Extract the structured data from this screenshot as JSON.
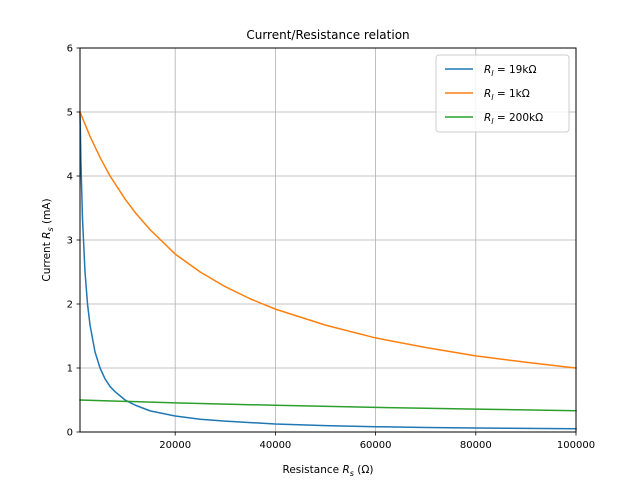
{
  "chart_data": {
    "type": "line",
    "title": "Current/Resistance relation",
    "xlabel": {
      "main": "Resistance ",
      "var": "R",
      "sub": "s",
      "unit": " (Ω)"
    },
    "ylabel": {
      "main": "Current ",
      "var": "R",
      "sub": "s",
      "unit": " (mA)"
    },
    "xlim": [
      1000,
      100000
    ],
    "ylim": [
      0,
      6
    ],
    "xticks": [
      20000,
      40000,
      60000,
      80000,
      100000
    ],
    "yticks": [
      0,
      1,
      2,
      3,
      4,
      5,
      6
    ],
    "grid": true,
    "legend_position": "top-right",
    "series": [
      {
        "name": "R_l = 19kΩ",
        "label": {
          "var": "R",
          "sub": "l",
          "rest": " = 19kΩ"
        },
        "color": "#1f77b4",
        "x": [
          1000,
          1200,
          1500,
          2000,
          2500,
          3000,
          4000,
          5000,
          6000,
          7000,
          8000,
          10000,
          12000,
          15000,
          20000,
          25000,
          30000,
          40000,
          50000,
          60000,
          70000,
          80000,
          90000,
          100000
        ],
        "y": [
          5.0,
          4.17,
          3.33,
          2.5,
          2.0,
          1.67,
          1.25,
          1.0,
          0.83,
          0.71,
          0.63,
          0.5,
          0.42,
          0.33,
          0.25,
          0.2,
          0.17,
          0.125,
          0.1,
          0.083,
          0.071,
          0.063,
          0.056,
          0.05
        ]
      },
      {
        "name": "R_l = 1kΩ",
        "label": {
          "var": "R",
          "sub": "l",
          "rest": " = 1kΩ"
        },
        "color": "#ff7f0e",
        "x": [
          1000,
          3000,
          5000,
          7000,
          10000,
          12000,
          15000,
          20000,
          25000,
          30000,
          35000,
          40000,
          50000,
          60000,
          70000,
          80000,
          90000,
          100000
        ],
        "y": [
          5.0,
          4.62,
          4.29,
          4.0,
          3.64,
          3.43,
          3.16,
          2.78,
          2.5,
          2.27,
          2.08,
          1.92,
          1.67,
          1.47,
          1.32,
          1.19,
          1.09,
          1.0
        ]
      },
      {
        "name": "R_l = 200kΩ",
        "label": {
          "var": "R",
          "sub": "l",
          "rest": " = 200kΩ"
        },
        "color": "#2ca02c",
        "x": [
          1000,
          20000,
          40000,
          60000,
          80000,
          100000
        ],
        "y": [
          0.5,
          0.455,
          0.417,
          0.385,
          0.357,
          0.333
        ]
      }
    ]
  }
}
